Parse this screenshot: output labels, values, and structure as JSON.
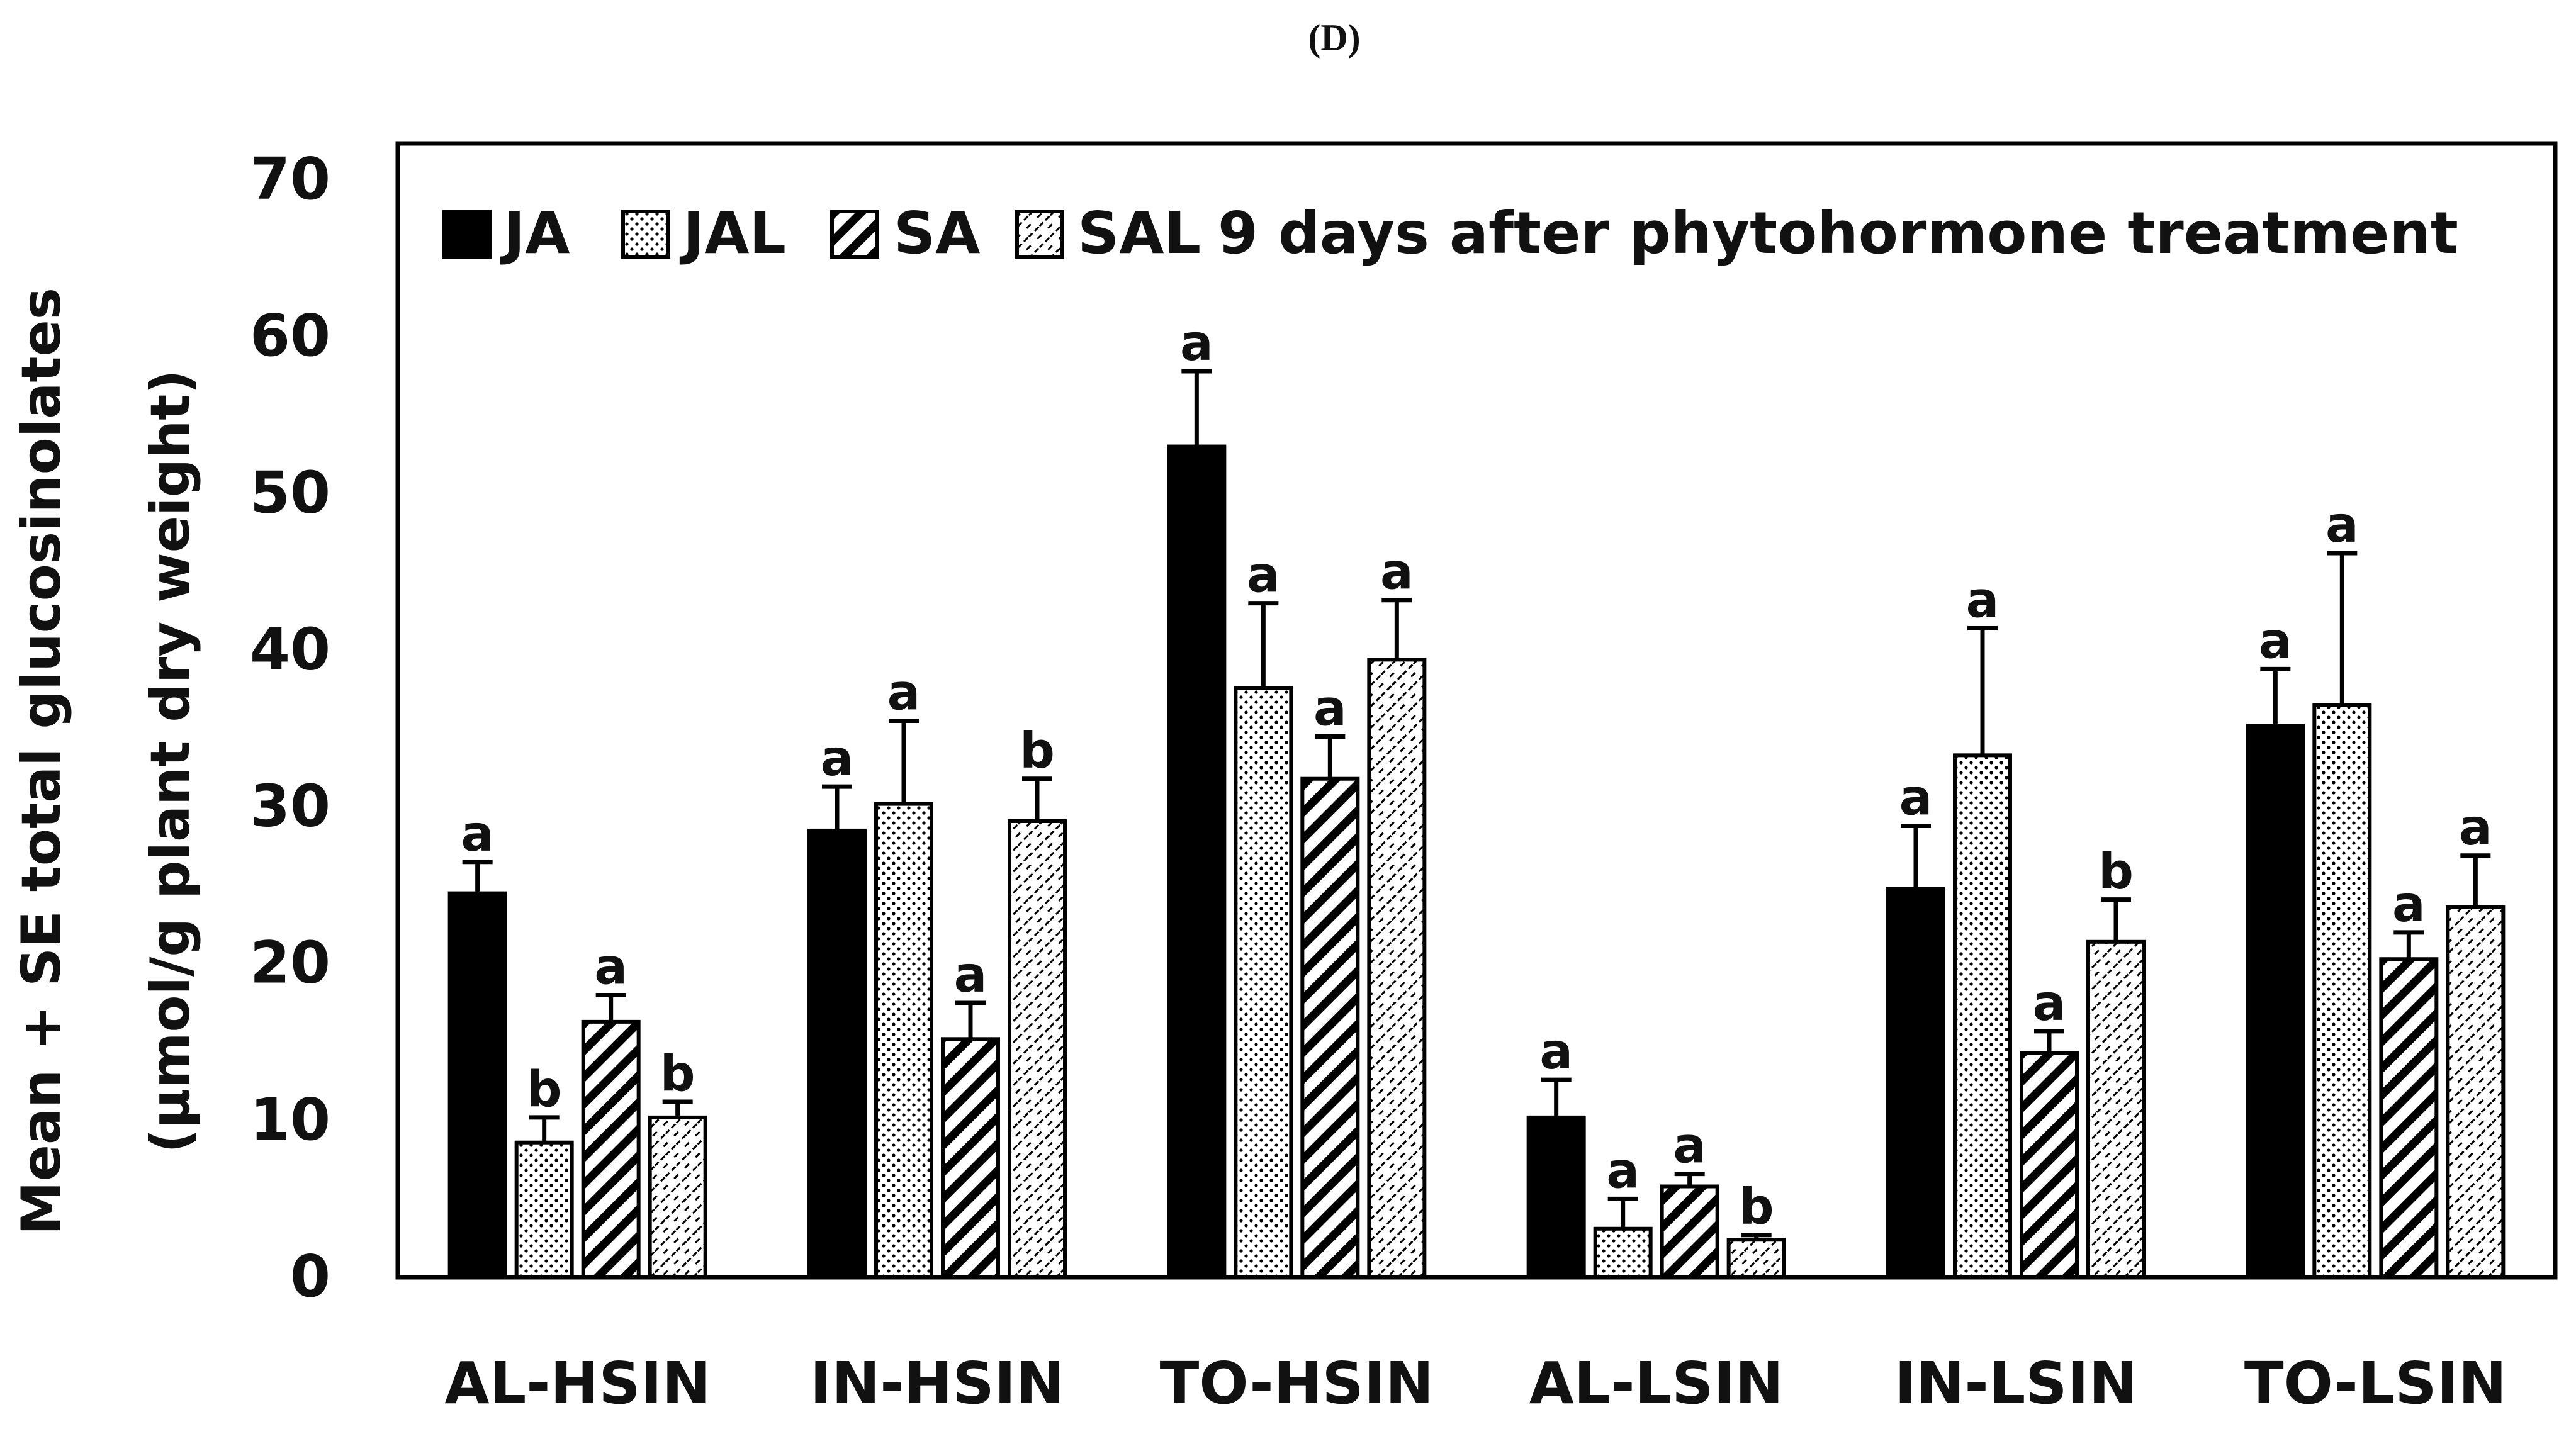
{
  "panel_label": "(D)",
  "colors": {
    "bar_fill": "#000000",
    "background": "#ffffff",
    "stroke": "#000000"
  },
  "chart_data": {
    "type": "bar",
    "title": "",
    "xlabel": "",
    "ylabel_line1": "Mean + SE total glucosinolates",
    "ylabel_line2": "(µmol/g  plant dry weight)",
    "ylim": [
      0,
      70
    ],
    "yticks": [
      0,
      10,
      20,
      30,
      40,
      50,
      60,
      70
    ],
    "legend_position": "top",
    "legend_suffix": "9 days after phytohormone treatment",
    "categories": [
      "AL-HSIN",
      "IN-HSIN",
      "TO-HSIN",
      "AL-LSIN",
      "IN-LSIN",
      "TO-LSIN"
    ],
    "series": [
      {
        "name": "JA",
        "pattern": "solid",
        "values": [
          24.5,
          28.5,
          53.0,
          10.2,
          24.8,
          35.2
        ],
        "errors": [
          2.0,
          2.8,
          4.8,
          2.4,
          4.0,
          3.6
        ],
        "letters": [
          "a",
          "a",
          "a",
          "a",
          "a",
          "a"
        ]
      },
      {
        "name": "JAL",
        "pattern": "dots",
        "values": [
          8.6,
          30.2,
          37.6,
          3.1,
          33.3,
          36.5
        ],
        "errors": [
          1.6,
          5.3,
          5.4,
          1.9,
          8.1,
          9.7
        ],
        "letters": [
          "b",
          "a",
          "a",
          "a",
          "a",
          "a"
        ]
      },
      {
        "name": "SA",
        "pattern": "hatch-bold",
        "values": [
          16.3,
          15.2,
          31.8,
          5.8,
          14.3,
          20.3
        ],
        "errors": [
          1.7,
          2.3,
          2.7,
          0.8,
          1.4,
          1.7
        ],
        "letters": [
          "a",
          "a",
          "a",
          "a",
          "a",
          "a"
        ]
      },
      {
        "name": "SAL",
        "pattern": "hatch-dashed",
        "values": [
          10.2,
          29.1,
          39.4,
          2.4,
          21.4,
          23.6
        ],
        "errors": [
          1.0,
          2.7,
          3.8,
          0.3,
          2.7,
          3.3
        ],
        "letters": [
          "b",
          "b",
          "a",
          "b",
          "b",
          "a"
        ]
      }
    ]
  }
}
